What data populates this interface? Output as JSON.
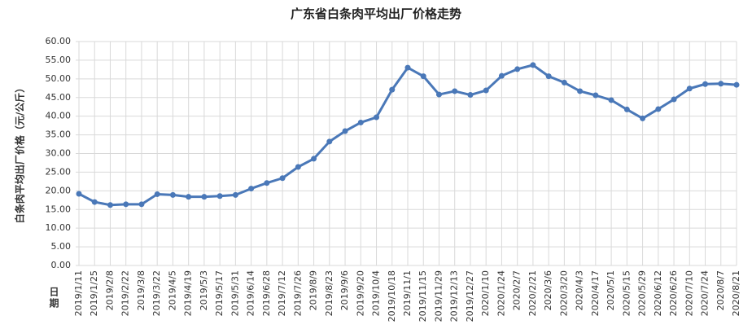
{
  "chart_data": {
    "type": "line",
    "title": "广东省白条肉平均出厂价格走势",
    "y_label": "白条肉平均出厂价格（元/公斤）",
    "x_label": "日期",
    "categories": [
      "2019/1/11",
      "2019/1/25",
      "2019/2/8",
      "2019/2/22",
      "2019/3/8",
      "2019/3/22",
      "2019/4/5",
      "2019/4/19",
      "2019/5/3",
      "2019/5/17",
      "2019/5/31",
      "2019/6/14",
      "2019/6/28",
      "2019/7/12",
      "2019/7/26",
      "2019/8/9",
      "2019/8/23",
      "2019/9/6",
      "2019/9/20",
      "2019/10/4",
      "2019/10/18",
      "2019/11/1",
      "2019/11/15",
      "2019/11/29",
      "2019/12/13",
      "2019/12/27",
      "2020/1/10",
      "2020/1/24",
      "2020/2/7",
      "2020/2/21",
      "2020/3/6",
      "2020/3/20",
      "2020/4/3",
      "2020/4/17",
      "2020/5/1",
      "2020/5/15",
      "2020/5/29",
      "2020/6/12",
      "2020/6/26",
      "2020/7/10",
      "2020/7/24",
      "2020/8/7",
      "2020/8/21"
    ],
    "series": [
      {
        "color": "#4a78b8",
        "values": [
          19.2,
          17.0,
          16.2,
          16.4,
          16.4,
          19.1,
          18.9,
          18.4,
          18.4,
          18.6,
          18.9,
          20.6,
          22.1,
          23.4,
          26.4,
          28.6,
          33.2,
          36.0,
          38.3,
          39.7,
          47.1,
          53.0,
          50.7,
          45.8,
          46.7,
          45.7,
          46.9,
          50.8,
          52.6,
          53.7,
          50.7,
          49.0,
          46.7,
          45.6,
          44.3,
          41.8,
          39.4,
          41.9,
          44.5,
          47.4,
          48.6,
          48.7,
          48.4
        ]
      }
    ],
    "ylim": [
      0,
      60
    ],
    "yticks": [
      {
        "value": 0,
        "label": "0.00"
      },
      {
        "value": 5,
        "label": "5.00"
      },
      {
        "value": 10,
        "label": "10.00"
      },
      {
        "value": 15,
        "label": "15.00"
      },
      {
        "value": 20,
        "label": "20.00"
      },
      {
        "value": 25,
        "label": "25.00"
      },
      {
        "value": 30,
        "label": "30.00"
      },
      {
        "value": 35,
        "label": "35.00"
      },
      {
        "value": 40,
        "label": "40.00"
      },
      {
        "value": 45,
        "label": "45.00"
      },
      {
        "value": 50,
        "label": "50.00"
      },
      {
        "value": 55,
        "label": "55.00"
      },
      {
        "value": 60,
        "label": "60.00"
      }
    ],
    "grid": true
  }
}
